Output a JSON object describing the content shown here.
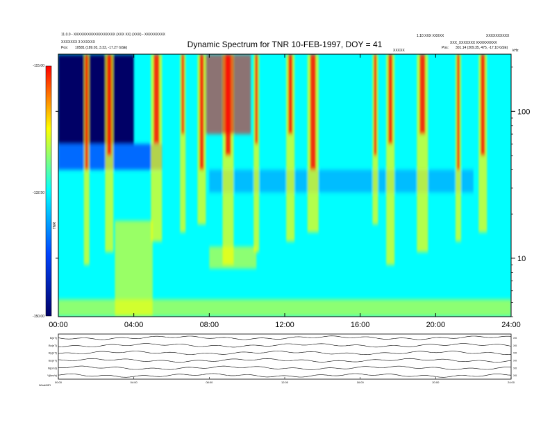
{
  "header": {
    "title": "Dynamic Spectrum for TNR 10-FEB-1997, DOY = 41",
    "left_line1": "11.0.0 - XXXXXXXXXXXXXXXXXX (XXX XX) (XXX) - XXXXXXXXX",
    "left_line2": "XXXXXXX 3 XXXXXX",
    "left_line3_label": "Pos:",
    "left_line3_value": "10581 (189.03, 3.33, -17.27 GSE)",
    "right_line1a": "1.10 XXX XXXXX",
    "right_line1b": "XXXXXXXXXX",
    "right_line2": "XXX_XXXXXXX XXXXXXXXX",
    "right_line3_label": "Pos:",
    "right_line3_value": "301.14 (209.35, 475, -17.10 GSE)",
    "center_small": "XXXXX",
    "unit_small": "kHz"
  },
  "colorbar": {
    "top_label": "-115.00",
    "mid_label": "-132.50",
    "bottom_label": "-150.00",
    "axis_label": "TNR"
  },
  "chart_data": {
    "type": "heatmap",
    "title": "Dynamic Spectrum for TNR 10-FEB-1997, DOY = 41",
    "xlabel": "",
    "ylabel": "kHz",
    "x_ticks": [
      "00:00",
      "04:00",
      "08:00",
      "12:00",
      "16:00",
      "20:00",
      "24:00"
    ],
    "xlim": [
      0,
      24
    ],
    "y_scale": "log",
    "y_ticks": [
      10,
      100
    ],
    "ylim": [
      4,
      245
    ],
    "colorbar_range": [
      -150,
      -115
    ],
    "colormap": [
      "#000066",
      "#0044ff",
      "#00ffff",
      "#ffff00",
      "#ff0000"
    ],
    "background_color": "#00ffff",
    "features": {
      "bursts_hours": [
        1.5,
        2.7,
        5.2,
        6.6,
        7.6,
        9.0,
        10.5,
        12.3,
        13.5,
        16.8,
        17.6,
        19.3,
        21.2,
        22.5
      ],
      "dark_region_hours": [
        0,
        4
      ],
      "low_freq_band_khz": 5
    }
  },
  "lower_panels": {
    "labels": [
      "B(nT)",
      "Bx(nT)",
      "By(nT)",
      "Bz(nT)",
      "N(cm3)",
      "V(km/s)"
    ],
    "right_labels": [
      "XX",
      "XX",
      "XX",
      "XX",
      "XX",
      "XX"
    ],
    "time_ticks": [
      "00:00",
      "04:00",
      "08:00",
      "12:00",
      "16:00",
      "20:00",
      "24:00"
    ],
    "footer_label": "Wind/MFI"
  }
}
